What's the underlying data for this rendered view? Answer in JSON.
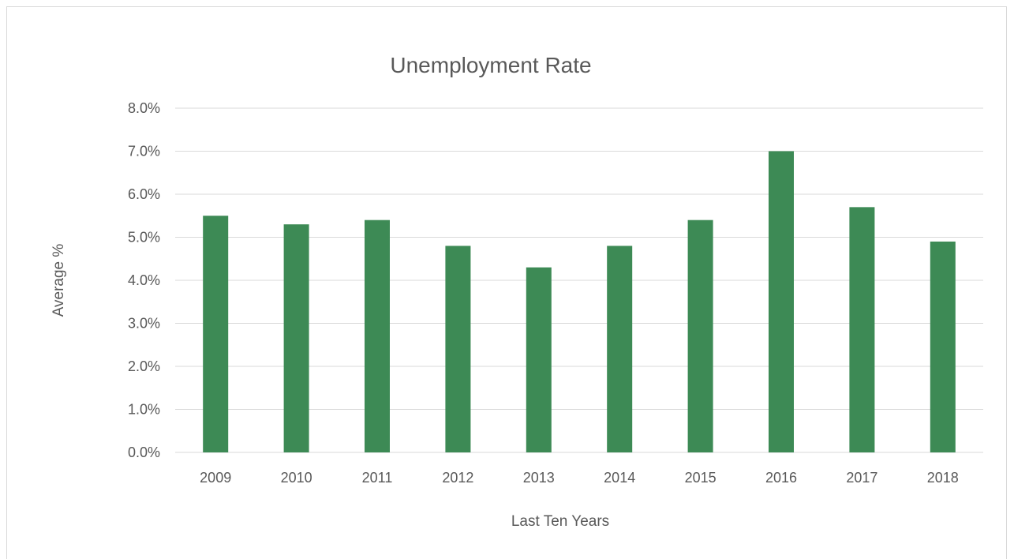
{
  "chart_data": {
    "type": "bar",
    "title": "Unemployment Rate",
    "xlabel": "Last Ten Years",
    "ylabel": "Average %",
    "categories": [
      "2009",
      "2010",
      "2011",
      "2012",
      "2013",
      "2014",
      "2015",
      "2016",
      "2017",
      "2018"
    ],
    "values": [
      5.5,
      5.3,
      5.4,
      4.8,
      4.3,
      4.8,
      5.4,
      7.0,
      5.7,
      4.9
    ],
    "ylim": [
      0,
      8
    ],
    "yticks": [
      "0.0%",
      "1.0%",
      "2.0%",
      "3.0%",
      "4.0%",
      "5.0%",
      "6.0%",
      "7.0%",
      "8.0%"
    ],
    "grid": true,
    "legend": "none",
    "colors": {
      "bar": "#3d8a55",
      "grid": "#d9d9d9",
      "text": "#595959"
    }
  }
}
